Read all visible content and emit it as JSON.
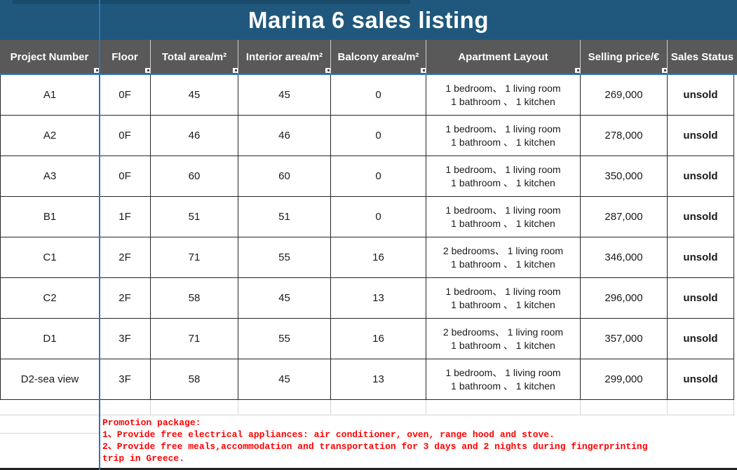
{
  "title": "Marina 6 sales listing",
  "columns": [
    "Project Number",
    "Floor",
    "Total area/m²",
    "Interior area/m²",
    "Balcony area/m²",
    "Apartment Layout",
    "Selling price/€",
    "Sales Status"
  ],
  "rows": [
    {
      "project": "A1",
      "floor": "0F",
      "total_area": "45",
      "interior_area": "45",
      "balcony_area": "0",
      "layout_line1": "1 bedroom、 1 living room",
      "layout_line2": "1 bathroom 、 1 kitchen",
      "price": "269,000",
      "status": "unsold"
    },
    {
      "project": "A2",
      "floor": "0F",
      "total_area": "46",
      "interior_area": "46",
      "balcony_area": "0",
      "layout_line1": "1 bedroom、 1 living room",
      "layout_line2": "1 bathroom 、 1 kitchen",
      "price": "278,000",
      "status": "unsold"
    },
    {
      "project": "A3",
      "floor": "0F",
      "total_area": "60",
      "interior_area": "60",
      "balcony_area": "0",
      "layout_line1": "1 bedroom、 1 living room",
      "layout_line2": "1 bathroom 、 1 kitchen",
      "price": "350,000",
      "status": "unsold"
    },
    {
      "project": "B1",
      "floor": "1F",
      "total_area": "51",
      "interior_area": "51",
      "balcony_area": "0",
      "layout_line1": "1 bedroom、 1 living room",
      "layout_line2": "1 bathroom 、 1 kitchen",
      "price": "287,000",
      "status": "unsold"
    },
    {
      "project": "C1",
      "floor": "2F",
      "total_area": "71",
      "interior_area": "55",
      "balcony_area": "16",
      "layout_line1": "2 bedrooms、 1 living room",
      "layout_line2": "1 bathroom 、 1 kitchen",
      "price": "346,000",
      "status": "unsold"
    },
    {
      "project": "C2",
      "floor": "2F",
      "total_area": "58",
      "interior_area": "45",
      "balcony_area": "13",
      "layout_line1": "1 bedroom、 1 living room",
      "layout_line2": "1 bathroom 、 1 kitchen",
      "price": "296,000",
      "status": "unsold"
    },
    {
      "project": "D1",
      "floor": "3F",
      "total_area": "71",
      "interior_area": "55",
      "balcony_area": "16",
      "layout_line1": "2 bedrooms、 1 living room",
      "layout_line2": "1 bathroom 、 1 kitchen",
      "price": "357,000",
      "status": "unsold"
    },
    {
      "project": "D2-sea view",
      "floor": "3F",
      "total_area": "58",
      "interior_area": "45",
      "balcony_area": "13",
      "layout_line1": "1 bedroom、 1 living room",
      "layout_line2": "1 bathroom 、 1 kitchen",
      "price": "299,000",
      "status": "unsold"
    }
  ],
  "promotion": {
    "lines": [
      "Promotion package:",
      "1、Provide free electrical appliances: air conditioner, oven, range hood and stove.",
      "2、Provide free meals,accommodation and transportation for 3 days and 2 nights during fingerprinting",
      "trip in Greece."
    ]
  },
  "colors": {
    "banner_blue": "#20587D",
    "header_gray": "#595959",
    "frozen_pane_blue": "#2E75B6",
    "grid_dark": "#262626",
    "grid_light": "#D6D6D6",
    "promo_text_red": "#FF0000"
  }
}
